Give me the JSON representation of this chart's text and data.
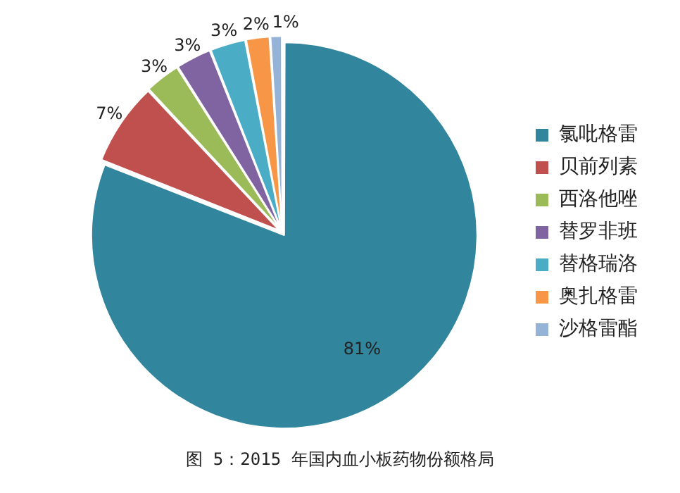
{
  "chart_data": {
    "type": "pie",
    "title": "图 5：2015 年国内血小板药物份额格局",
    "categories": [
      "氯吡格雷",
      "贝前列素",
      "西洛他唑",
      "替罗非班",
      "替格瑞洛",
      "奥扎格雷",
      "沙格雷酯"
    ],
    "values": [
      81,
      7,
      3,
      3,
      3,
      2,
      1
    ],
    "value_labels": [
      "81%",
      "7%",
      "3%",
      "3%",
      "3%",
      "2%",
      "1%"
    ],
    "colors": [
      "#31859c",
      "#c0504d",
      "#9bbb59",
      "#8064a2",
      "#4bacc6",
      "#f79646",
      "#95b3d7"
    ],
    "legend": "right"
  }
}
